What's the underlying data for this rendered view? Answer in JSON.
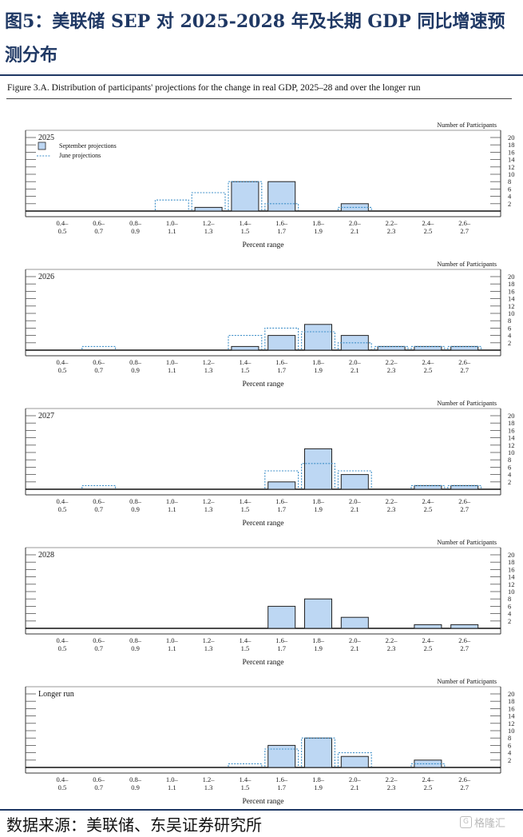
{
  "figure_title": "图5：美联储 SEP 对 2025-2028 年及长期 GDP 同比增速预测分布",
  "caption": "Figure 3.A. Distribution of participants' projections for the change in real GDP, 2025–28 and over the longer run",
  "source": "数据来源：美联储、东吴证券研究所",
  "watermark": "格隆汇",
  "colors": {
    "september_fill": "#bdd7f3",
    "june_line": "#3f8fc8",
    "title": "#1f3864"
  },
  "chart_data": [
    {
      "type": "bar",
      "panel_label": "2025",
      "categories": [
        "0.4–0.5",
        "0.6–0.7",
        "0.8–0.9",
        "1.0–1.1",
        "1.2–1.3",
        "1.4–1.5",
        "1.6–1.7",
        "1.8–1.9",
        "2.0–2.1",
        "2.2–2.3",
        "2.4–2.5",
        "2.6–2.7"
      ],
      "series": [
        {
          "name": "September projections",
          "values": [
            0,
            0,
            0,
            0,
            1,
            8,
            8,
            0,
            2,
            0,
            0,
            0
          ]
        },
        {
          "name": "June projections",
          "values": [
            0,
            0,
            0,
            3,
            5,
            8,
            2,
            0,
            1,
            0,
            0,
            0
          ]
        }
      ],
      "xlabel": "Percent range",
      "ylabel": "Number of Participants",
      "ylim": [
        0,
        20
      ],
      "yticks": [
        2,
        4,
        6,
        8,
        10,
        12,
        14,
        16,
        18,
        20
      ],
      "legend": "top-left"
    },
    {
      "type": "bar",
      "panel_label": "2026",
      "categories": [
        "0.4–0.5",
        "0.6–0.7",
        "0.8–0.9",
        "1.0–1.1",
        "1.2–1.3",
        "1.4–1.5",
        "1.6–1.7",
        "1.8–1.9",
        "2.0–2.1",
        "2.2–2.3",
        "2.4–2.5",
        "2.6–2.7"
      ],
      "series": [
        {
          "name": "September projections",
          "values": [
            0,
            0,
            0,
            0,
            0,
            1,
            4,
            7,
            4,
            1,
            1,
            1
          ]
        },
        {
          "name": "June projections",
          "values": [
            0,
            1,
            0,
            0,
            0,
            4,
            6,
            5,
            2,
            1,
            1,
            1
          ]
        }
      ],
      "xlabel": "Percent range",
      "ylabel": "Number of Participants",
      "ylim": [
        0,
        20
      ],
      "yticks": [
        2,
        4,
        6,
        8,
        10,
        12,
        14,
        16,
        18,
        20
      ]
    },
    {
      "type": "bar",
      "panel_label": "2027",
      "categories": [
        "0.4–0.5",
        "0.6–0.7",
        "0.8–0.9",
        "1.0–1.1",
        "1.2–1.3",
        "1.4–1.5",
        "1.6–1.7",
        "1.8–1.9",
        "2.0–2.1",
        "2.2–2.3",
        "2.4–2.5",
        "2.6–2.7"
      ],
      "series": [
        {
          "name": "September projections",
          "values": [
            0,
            0,
            0,
            0,
            0,
            0,
            2,
            11,
            4,
            0,
            1,
            1
          ]
        },
        {
          "name": "June projections",
          "values": [
            0,
            1,
            0,
            0,
            0,
            0,
            5,
            7,
            5,
            0,
            1,
            1
          ]
        }
      ],
      "xlabel": "Percent range",
      "ylabel": "Number of Participants",
      "ylim": [
        0,
        20
      ],
      "yticks": [
        2,
        4,
        6,
        8,
        10,
        12,
        14,
        16,
        18,
        20
      ]
    },
    {
      "type": "bar",
      "panel_label": "2028",
      "categories": [
        "0.4–0.5",
        "0.6–0.7",
        "0.8–0.9",
        "1.0–1.1",
        "1.2–1.3",
        "1.4–1.5",
        "1.6–1.7",
        "1.8–1.9",
        "2.0–2.1",
        "2.2–2.3",
        "2.4–2.5",
        "2.6–2.7"
      ],
      "series": [
        {
          "name": "September projections",
          "values": [
            0,
            0,
            0,
            0,
            0,
            0,
            6,
            8,
            3,
            0,
            1,
            1
          ]
        }
      ],
      "xlabel": "Percent range",
      "ylabel": "Number of Participants",
      "ylim": [
        0,
        20
      ],
      "yticks": [
        2,
        4,
        6,
        8,
        10,
        12,
        14,
        16,
        18,
        20
      ]
    },
    {
      "type": "bar",
      "panel_label": "Longer run",
      "categories": [
        "0.4–0.5",
        "0.6–0.7",
        "0.8–0.9",
        "1.0–1.1",
        "1.2–1.3",
        "1.4–1.5",
        "1.6–1.7",
        "1.8–1.9",
        "2.0–2.1",
        "2.2–2.3",
        "2.4–2.5",
        "2.6–2.7"
      ],
      "series": [
        {
          "name": "September projections",
          "values": [
            0,
            0,
            0,
            0,
            0,
            0,
            6,
            8,
            3,
            0,
            2,
            0
          ]
        },
        {
          "name": "June projections",
          "values": [
            0,
            0,
            0,
            0,
            0,
            1,
            5,
            8,
            4,
            0,
            1,
            0
          ]
        }
      ],
      "xlabel": "Percent range",
      "ylabel": "Number of Participants",
      "ylim": [
        0,
        20
      ],
      "yticks": [
        2,
        4,
        6,
        8,
        10,
        12,
        14,
        16,
        18,
        20
      ]
    }
  ]
}
